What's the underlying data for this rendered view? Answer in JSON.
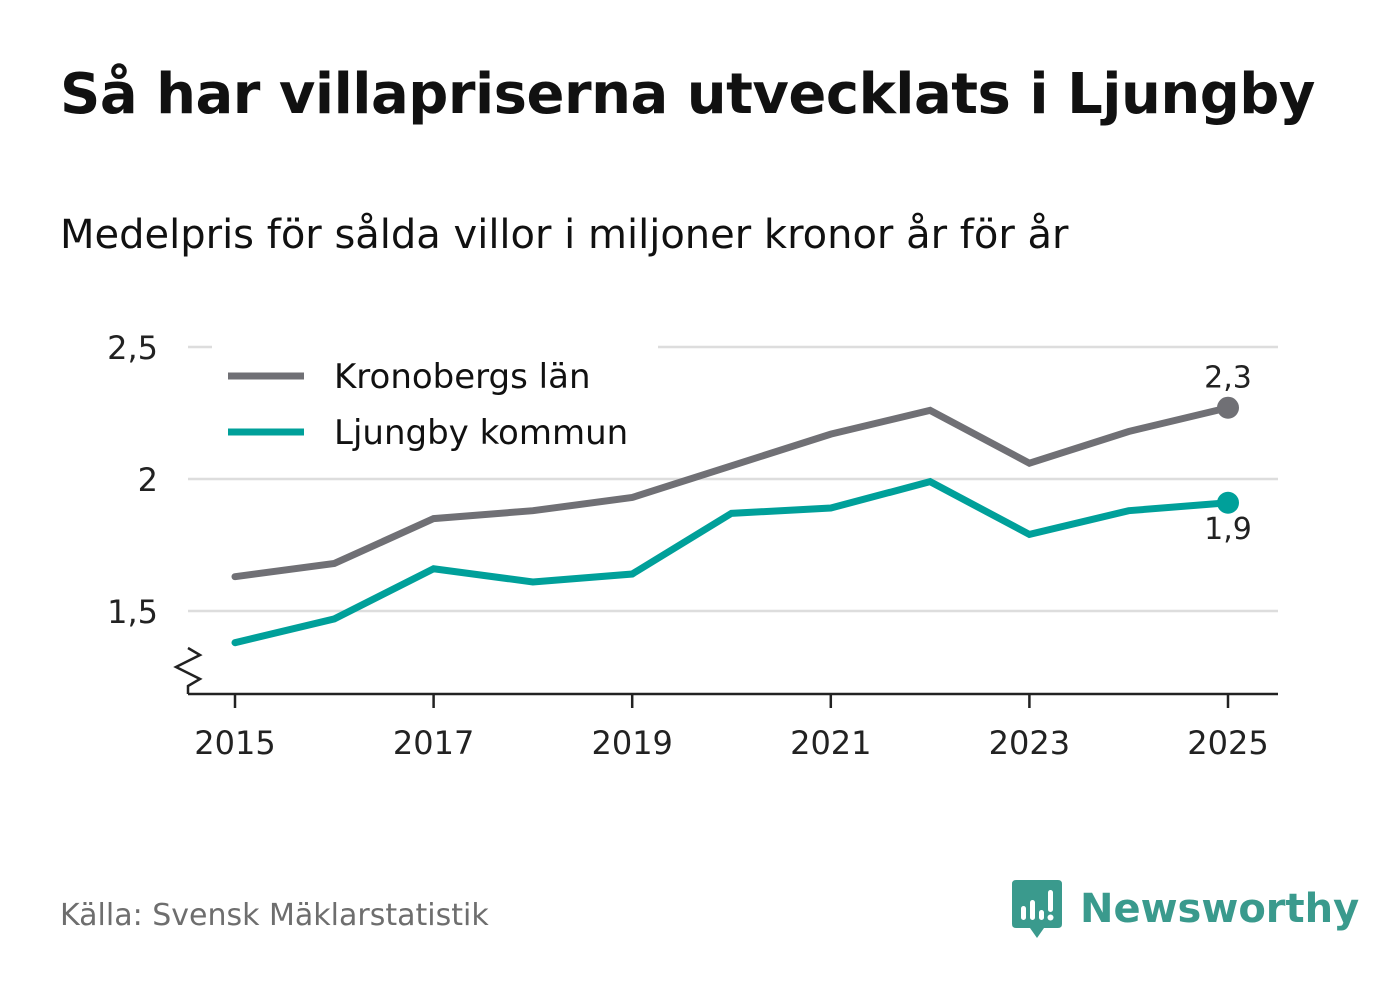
{
  "title": "Så har villapriserna utvecklats i Ljungby",
  "subtitle": "Medelpris för sålda villor i miljoner kronor år för år",
  "source": "Källa: Svensk Mäklarstatistik",
  "brand": "Newsworthy",
  "colors": {
    "grey_series": "#707075",
    "teal_series": "#00a09a",
    "grid": "#dddddd",
    "brand": "#3a9a8d"
  },
  "chart_data": {
    "type": "line",
    "title": "Så har villapriserna utvecklats i Ljungby",
    "subtitle": "Medelpris för sålda villor i miljoner kronor år för år",
    "xlabel": "",
    "ylabel": "",
    "x": [
      2015,
      2016,
      2017,
      2018,
      2019,
      2020,
      2021,
      2022,
      2023,
      2024,
      2025
    ],
    "x_tick_labels": [
      "2015",
      "2017",
      "2019",
      "2021",
      "2023",
      "2025"
    ],
    "x_tick_values": [
      2015,
      2017,
      2019,
      2021,
      2023,
      2025
    ],
    "y_tick_labels": [
      "1,5",
      "2",
      "2,5"
    ],
    "y_tick_values": [
      1.5,
      2.0,
      2.5
    ],
    "ylim": [
      1.2,
      2.5
    ],
    "xlim": [
      2014.5,
      2025.5
    ],
    "grid": true,
    "legend_position": "top-left",
    "series": [
      {
        "name": "Kronobergs län",
        "color": "#707075",
        "values": [
          1.63,
          1.68,
          1.85,
          1.88,
          1.93,
          2.05,
          2.17,
          2.26,
          2.06,
          2.18,
          2.27
        ],
        "end_label": "2,3"
      },
      {
        "name": "Ljungby kommun",
        "color": "#00a09a",
        "values": [
          1.38,
          1.47,
          1.66,
          1.61,
          1.64,
          1.87,
          1.89,
          1.99,
          1.79,
          1.88,
          1.91
        ],
        "end_label": "1,9"
      }
    ]
  }
}
